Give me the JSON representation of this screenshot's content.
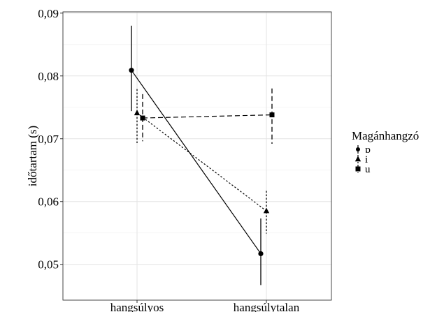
{
  "chart_data": {
    "type": "line",
    "title": "",
    "xlabel": "",
    "ylabel": "időtartam (s)",
    "categories": [
      "hangsúlyos",
      "hangsúlytalan"
    ],
    "ylim": [
      0.0443,
      0.0902
    ],
    "y_ticks": [
      0.05,
      0.06,
      0.07,
      0.08,
      0.09
    ],
    "y_tick_labels": [
      "0,05",
      "0,06",
      "0,07",
      "0,08",
      "0,09"
    ],
    "grid": true,
    "legend_position": "right",
    "legend_title": "Magánhangzó",
    "series": [
      {
        "name": "ɒ",
        "marker": "circle",
        "line": "solid",
        "color": "#000000",
        "values": [
          0.0809,
          0.0517
        ],
        "error_low": [
          0.0744,
          0.0467
        ],
        "error_high": [
          0.088,
          0.0573
        ]
      },
      {
        "name": "i",
        "marker": "triangle",
        "line": "dotted",
        "color": "#000000",
        "values": [
          0.0741,
          0.0585
        ],
        "error_low": [
          0.0693,
          0.0549
        ],
        "error_high": [
          0.0779,
          0.0617
        ]
      },
      {
        "name": "u",
        "marker": "square",
        "line": "dashed",
        "color": "#000000",
        "values": [
          0.0733,
          0.0738
        ],
        "error_low": [
          0.0696,
          0.0692
        ],
        "error_high": [
          0.0771,
          0.078
        ]
      }
    ]
  }
}
